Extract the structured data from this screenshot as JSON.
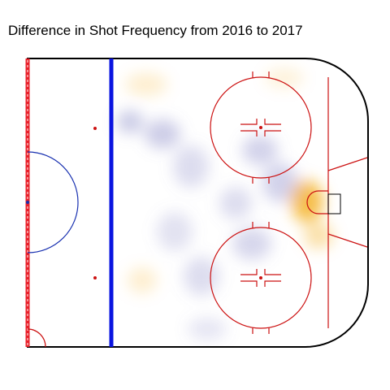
{
  "chart_data": {
    "type": "heatmap",
    "title": "Difference in Shot Frequency from 2016 to 2017",
    "xlabel": "",
    "ylabel": "",
    "legend": "none",
    "color_scale": {
      "decrease": "#7a7cc0",
      "neutral": "#ffffff",
      "increase": "#f2a400"
    },
    "background": "half-rink offensive zone diagram",
    "hotspots": [
      {
        "region": "crease / in front of net",
        "change": 0.95
      },
      {
        "region": "slot just below net",
        "change": 0.45
      },
      {
        "region": "top left near blue line",
        "change": 0.25
      },
      {
        "region": "right circle top",
        "change": 0.2
      },
      {
        "region": "left circle bottom",
        "change": 0.25
      },
      {
        "region": "left point",
        "change": -0.55
      },
      {
        "region": "high slot",
        "change": -0.5
      },
      {
        "region": "top faceoff circle inside",
        "change": -0.45
      },
      {
        "region": "bottom faceoff circle inside",
        "change": -0.4
      },
      {
        "region": "net-front lane to high slot",
        "change": -0.45
      },
      {
        "region": "low slot",
        "change": -0.35
      },
      {
        "region": "center neutral edge",
        "change": -0.35
      },
      {
        "region": "mid upper",
        "change": -0.35
      },
      {
        "region": "mid lower",
        "change": -0.3
      },
      {
        "region": "right of center",
        "change": -0.25
      }
    ]
  }
}
